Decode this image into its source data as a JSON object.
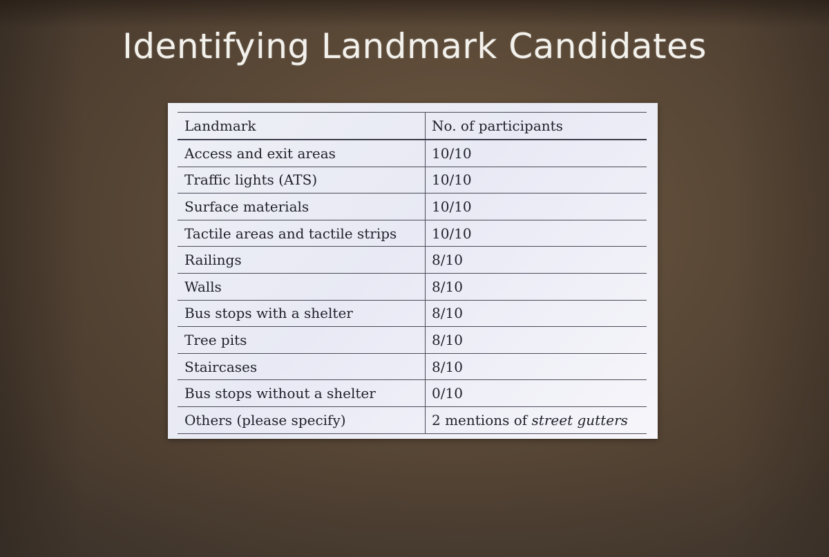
{
  "slide": {
    "title": "Identifying Landmark Candidates"
  },
  "table": {
    "headers": [
      "Landmark",
      "No. of participants"
    ],
    "rows": [
      {
        "landmark": "Access and exit areas",
        "count": "10/10"
      },
      {
        "landmark": "Traffic lights (ATS)",
        "count": "10/10"
      },
      {
        "landmark": "Surface materials",
        "count": "10/10"
      },
      {
        "landmark": "Tactile areas and tactile strips",
        "count": "10/10"
      },
      {
        "landmark": "Railings",
        "count": "8/10"
      },
      {
        "landmark": "Walls",
        "count": "8/10"
      },
      {
        "landmark": "Bus stops with a shelter",
        "count": "8/10"
      },
      {
        "landmark": "Tree pits",
        "count": "8/10"
      },
      {
        "landmark": "Staircases",
        "count": "8/10"
      },
      {
        "landmark": "Bus stops without a shelter",
        "count": "0/10"
      },
      {
        "landmark": "Others (please specify)",
        "count_prefix": "2 mentions of ",
        "count_italic": "street gutters"
      }
    ]
  },
  "colors": {
    "background": "#5b4937",
    "title_text": "#f3f1ec",
    "table_card": "#eceef6",
    "table_text": "#1f1f2a",
    "rule_lines": "#4a4a58"
  }
}
